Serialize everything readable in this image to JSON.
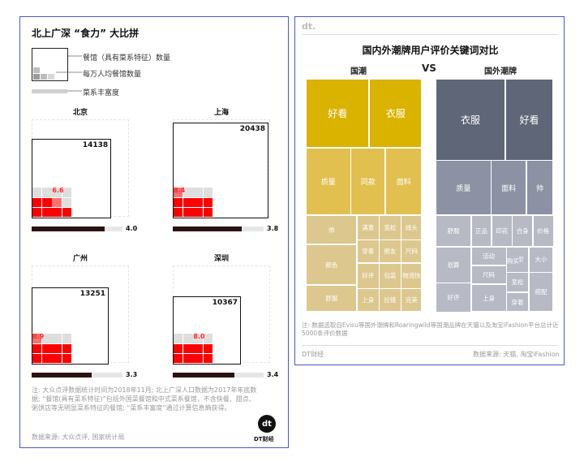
{
  "left": {
    "title": "北上广深 “食力” 大比拼",
    "legend": [
      "餐馆（具有菜系特征）数量",
      "每万人均餐馆数量",
      "菜系丰富度"
    ],
    "note": "注: 大众点评数据统计时间为2018年11月; 北上广深人口数据为2017年年底数据; “餐馆(具有菜系特征)”包括外国菜餐馆和中式菜系餐馆，不含快餐、甜点、粥饼店等无明显菜系特征的餐馆; “菜系丰富度”通过计算信息熵获得。",
    "source": "数据来源: 大众点评, 国家统计局",
    "logo_text": "dt",
    "logo_caption": "DT财经"
  },
  "right": {
    "header_logo": "dt.",
    "title": "国内外潮牌用户评价关键词对比",
    "label_domestic": "国潮",
    "label_vs": "VS",
    "label_foreign": "国外潮牌",
    "note": "注: 数据选取自Evisu等国外潮牌和Roaringwild等国潮品牌在天猫以及淘宝iFashion平台总计近5000条评价数据",
    "footer_left": "DT财经",
    "footer_right": "数据来源: 天猫, 淘宝iFashion"
  },
  "colors": {
    "frame": "#4a57c9",
    "restaurants_red": "#ff0000",
    "richness_bar": "#2a1210",
    "domestic_large": "#d9b300",
    "domestic_mid": "#e2c04f",
    "domestic_small": "#dcc78e",
    "foreign_large": "#5f6677",
    "foreign_mid": "#8c92a3",
    "foreign_small": "#b7bac5"
  },
  "chart_data": [
    {
      "type": "table",
      "title": "北上广深 “食力” 大比拼",
      "columns": [
        "城市",
        "餐馆（具有菜系特征）数量",
        "每万人均餐馆数量",
        "菜系丰富度"
      ],
      "rows": [
        [
          "北京",
          14138,
          6.6,
          4.0
        ],
        [
          "上海",
          20438,
          8.4,
          3.8
        ],
        [
          "广州",
          13251,
          8.9,
          3.3
        ],
        [
          "深圳",
          10367,
          8.0,
          3.4
        ]
      ],
      "richness_max": 5
    },
    {
      "type": "heatmap",
      "subtype": "treemap",
      "title": "国内外潮牌用户评价关键词对比",
      "series": [
        {
          "name": "国潮",
          "keywords": [
            "好看",
            "衣服",
            "质量",
            "同款",
            "面料",
            "帅",
            "颜色",
            "舒服",
            "满意",
            "宽松",
            "线头",
            "穿着",
            "朋友",
            "尺码",
            "好评",
            "包装",
            "物流快",
            "上身",
            "拉链",
            "完美"
          ]
        },
        {
          "name": "国外潮牌",
          "keywords": [
            "衣服",
            "好看",
            "质量",
            "面料",
            "帅",
            "舒服",
            "正品",
            "印花",
            "合身",
            "价格",
            "划算",
            "活动",
            "好评",
            "尺码",
            "上身",
            "版型",
            "大小",
            "宽松",
            "搭配",
            "穿着",
            "喜欢",
            "购买"
          ]
        }
      ]
    }
  ]
}
